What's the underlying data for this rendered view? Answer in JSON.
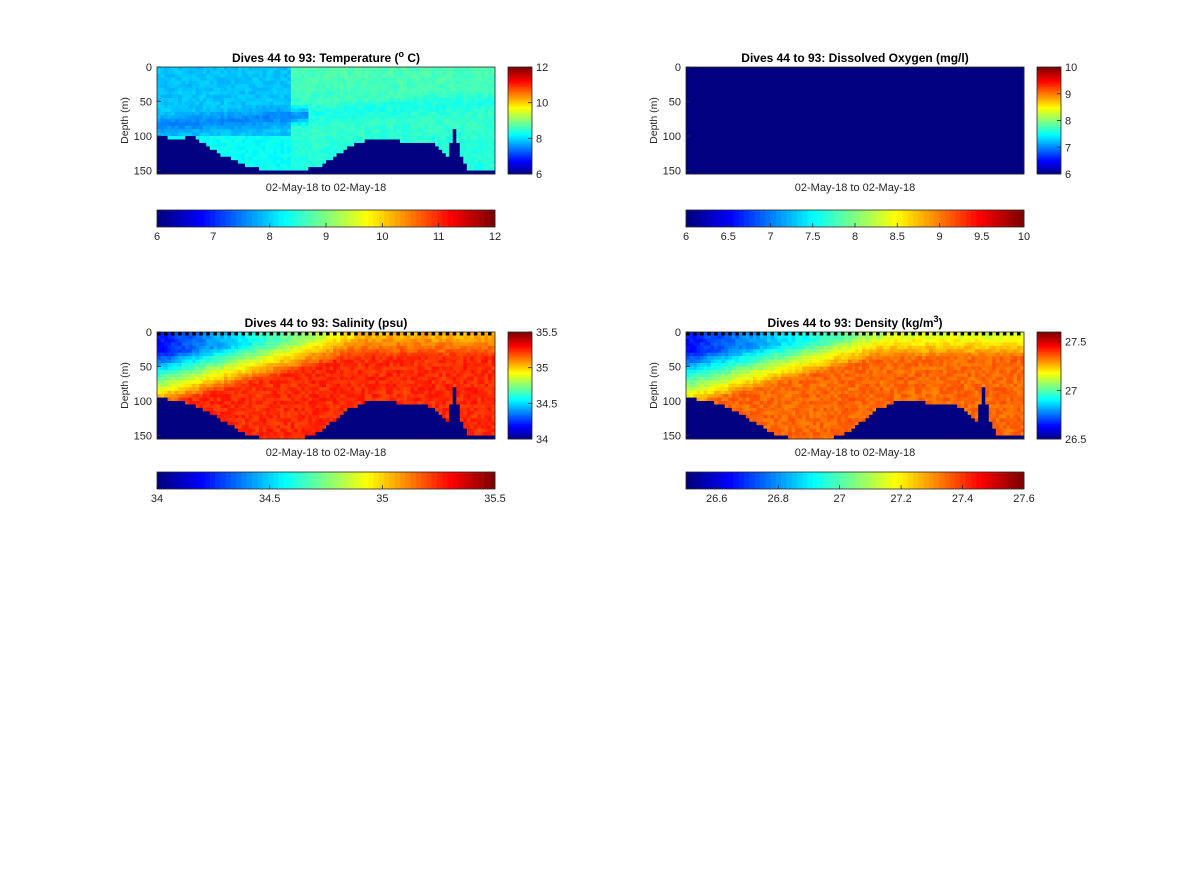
{
  "figure": {
    "background": "#ffffff",
    "no_data_color": "#000080"
  },
  "chart_data": [
    {
      "id": "temperature",
      "type": "heatmap",
      "title": "Dives 44 to 93: Temperature (",
      "title_sup": "o",
      "title_suffix": " C)",
      "xlabel": "02-May-18 to 02-May-18",
      "ylabel": "Depth (m)",
      "yticks": [
        0,
        50,
        100,
        150
      ],
      "ylim": [
        0,
        155
      ],
      "clim": [
        6,
        12
      ],
      "colormap": "jet",
      "side_colorbar_ticks": [
        "6",
        "8",
        "10",
        "12"
      ],
      "bottom_colorbar_ticks": [
        "6",
        "7",
        "8",
        "9",
        "10",
        "11",
        "12"
      ],
      "columns": 96,
      "row_step_m": 5,
      "profile": {
        "mixed_layer_value": 8.1,
        "upper_value": 7.9,
        "cold_layer_value": 7.5,
        "deep_value": 8.3,
        "late_surface_value": 8.7,
        "late_deep_value": 8.4
      },
      "seafloor_depth_points": [
        [
          0,
          100
        ],
        [
          5,
          105
        ],
        [
          10,
          100
        ],
        [
          14,
          115
        ],
        [
          18,
          128
        ],
        [
          22,
          136
        ],
        [
          26,
          145
        ],
        [
          32,
          150
        ],
        [
          40,
          150
        ],
        [
          46,
          143
        ],
        [
          50,
          130
        ],
        [
          54,
          115
        ],
        [
          58,
          108
        ],
        [
          62,
          104
        ],
        [
          66,
          104
        ],
        [
          70,
          110
        ],
        [
          74,
          108
        ],
        [
          78,
          112
        ],
        [
          80,
          120
        ],
        [
          82,
          130
        ],
        [
          84,
          88
        ],
        [
          86,
          130
        ],
        [
          88,
          150
        ],
        [
          92,
          152
        ],
        [
          95,
          150
        ]
      ]
    },
    {
      "id": "oxygen",
      "type": "heatmap",
      "title": "Dives 44 to 93: Dissolved Oxygen (mg/l)",
      "title_sup": "",
      "title_suffix": "",
      "xlabel": "02-May-18 to 02-May-18",
      "ylabel": "Depth (m)",
      "yticks": [
        0,
        50,
        100,
        150
      ],
      "ylim": [
        0,
        155
      ],
      "clim": [
        6,
        10
      ],
      "colormap": "jet",
      "side_colorbar_ticks": [
        "6",
        "7",
        "8",
        "9",
        "10"
      ],
      "bottom_colorbar_ticks": [
        "6",
        "6.5",
        "7",
        "7.5",
        "8",
        "8.5",
        "9",
        "9.5",
        "10"
      ],
      "columns": 96,
      "row_step_m": 5,
      "uniform_value": 6.0
    },
    {
      "id": "salinity",
      "type": "heatmap",
      "title": "Dives 44 to 93: Salinity (psu)",
      "title_sup": "",
      "title_suffix": "",
      "xlabel": "02-May-18 to 02-May-18",
      "ylabel": "Depth (m)",
      "yticks": [
        0,
        50,
        100,
        150
      ],
      "ylim": [
        0,
        155
      ],
      "clim": [
        34,
        35.5
      ],
      "colormap": "jet",
      "side_colorbar_ticks": [
        "34",
        "34.5",
        "35",
        "35.5"
      ],
      "bottom_colorbar_ticks": [
        "34",
        "34.5",
        "35",
        "35.5"
      ],
      "columns": 96,
      "row_step_m": 5,
      "profile": {
        "surface_value_start": 34.2,
        "surface_value_end": 35.05,
        "deep_value": 35.25,
        "ramp_depth_start_m": 30,
        "ramp_depth_end_m": 110
      },
      "seafloor_depth_points": [
        [
          0,
          95
        ],
        [
          5,
          100
        ],
        [
          10,
          105
        ],
        [
          14,
          115
        ],
        [
          18,
          128
        ],
        [
          22,
          140
        ],
        [
          26,
          150
        ],
        [
          32,
          155
        ],
        [
          40,
          155
        ],
        [
          46,
          145
        ],
        [
          50,
          128
        ],
        [
          54,
          112
        ],
        [
          58,
          103
        ],
        [
          62,
          98
        ],
        [
          66,
          100
        ],
        [
          70,
          105
        ],
        [
          74,
          103
        ],
        [
          78,
          110
        ],
        [
          80,
          118
        ],
        [
          82,
          128
        ],
        [
          84,
          80
        ],
        [
          86,
          128
        ],
        [
          88,
          150
        ],
        [
          92,
          152
        ],
        [
          95,
          150
        ]
      ]
    },
    {
      "id": "density",
      "type": "heatmap",
      "title": "Dives 44 to 93: Density (kg/m",
      "title_sup": "3",
      "title_suffix": ")",
      "xlabel": "02-May-18 to 02-May-18",
      "ylabel": "Depth (m)",
      "yticks": [
        0,
        50,
        100,
        150
      ],
      "ylim": [
        0,
        155
      ],
      "clim": [
        26.5,
        27.6
      ],
      "colormap": "jet",
      "side_colorbar_ticks": [
        "26.5",
        "27",
        "27.5"
      ],
      "bottom_colorbar_ticks": [
        "26.6",
        "26.8",
        "27",
        "27.2",
        "27.4",
        "27.6"
      ],
      "columns": 96,
      "row_step_m": 5,
      "profile": {
        "surface_value_start": 26.65,
        "surface_value_end": 27.15,
        "deep_value": 27.35,
        "ramp_depth_start_m": 30,
        "ramp_depth_end_m": 110
      },
      "seafloor_depth_points": [
        [
          0,
          95
        ],
        [
          5,
          100
        ],
        [
          10,
          105
        ],
        [
          14,
          115
        ],
        [
          18,
          128
        ],
        [
          22,
          140
        ],
        [
          26,
          150
        ],
        [
          32,
          155
        ],
        [
          40,
          155
        ],
        [
          46,
          145
        ],
        [
          50,
          128
        ],
        [
          54,
          112
        ],
        [
          58,
          103
        ],
        [
          62,
          98
        ],
        [
          66,
          100
        ],
        [
          70,
          105
        ],
        [
          74,
          103
        ],
        [
          78,
          110
        ],
        [
          80,
          118
        ],
        [
          82,
          128
        ],
        [
          84,
          80
        ],
        [
          86,
          128
        ],
        [
          88,
          150
        ],
        [
          92,
          152
        ],
        [
          95,
          150
        ]
      ]
    }
  ]
}
